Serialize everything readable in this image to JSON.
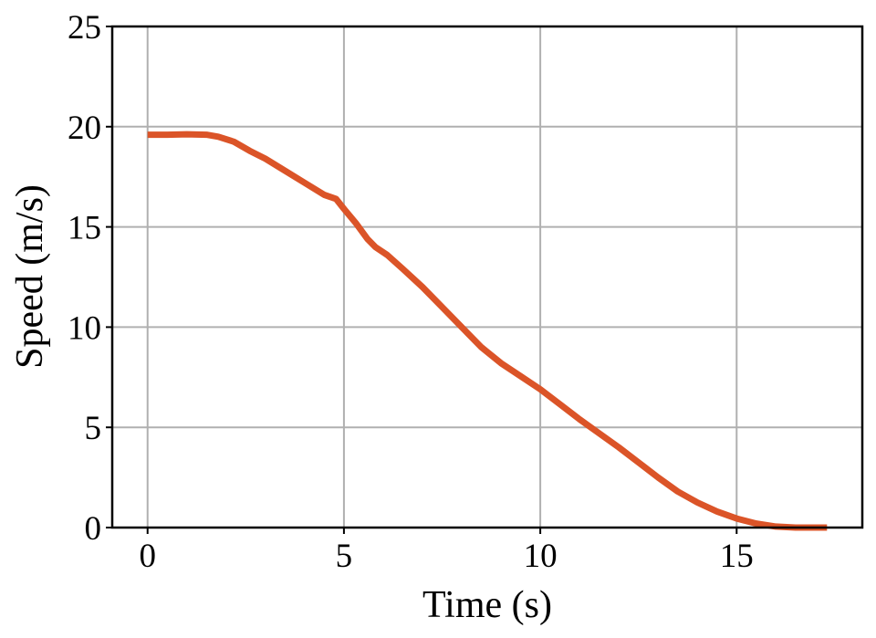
{
  "chart_data": {
    "type": "line",
    "title": "",
    "xlabel": "Time (s)",
    "ylabel": "Speed (m/s)",
    "xlim": [
      -0.9,
      18.2
    ],
    "ylim": [
      0,
      25
    ],
    "xticks": [
      0,
      5,
      10,
      15
    ],
    "yticks": [
      0,
      5,
      10,
      15,
      20,
      25
    ],
    "grid": true,
    "legend": "none",
    "series": [
      {
        "color": "#db5428",
        "x": [
          0,
          0.5,
          1.0,
          1.5,
          1.8,
          2.2,
          2.6,
          3.0,
          3.5,
          4.0,
          4.5,
          4.8,
          5.0,
          5.3,
          5.6,
          5.8,
          6.1,
          6.5,
          7.0,
          7.5,
          8.0,
          8.5,
          9.0,
          9.5,
          10.0,
          10.5,
          11.0,
          11.5,
          12.0,
          12.5,
          13.0,
          13.5,
          14.0,
          14.5,
          15.0,
          15.5,
          16.0,
          16.5,
          17.0,
          17.3
        ],
        "y": [
          19.6,
          19.6,
          19.62,
          19.6,
          19.5,
          19.25,
          18.8,
          18.4,
          17.8,
          17.2,
          16.6,
          16.4,
          15.9,
          15.2,
          14.4,
          14.0,
          13.6,
          12.9,
          12.0,
          11.0,
          10.0,
          9.0,
          8.2,
          7.55,
          6.9,
          6.15,
          5.4,
          4.7,
          4.0,
          3.25,
          2.5,
          1.8,
          1.25,
          0.8,
          0.45,
          0.2,
          0.05,
          0.0,
          0.0,
          0.0
        ]
      }
    ]
  }
}
